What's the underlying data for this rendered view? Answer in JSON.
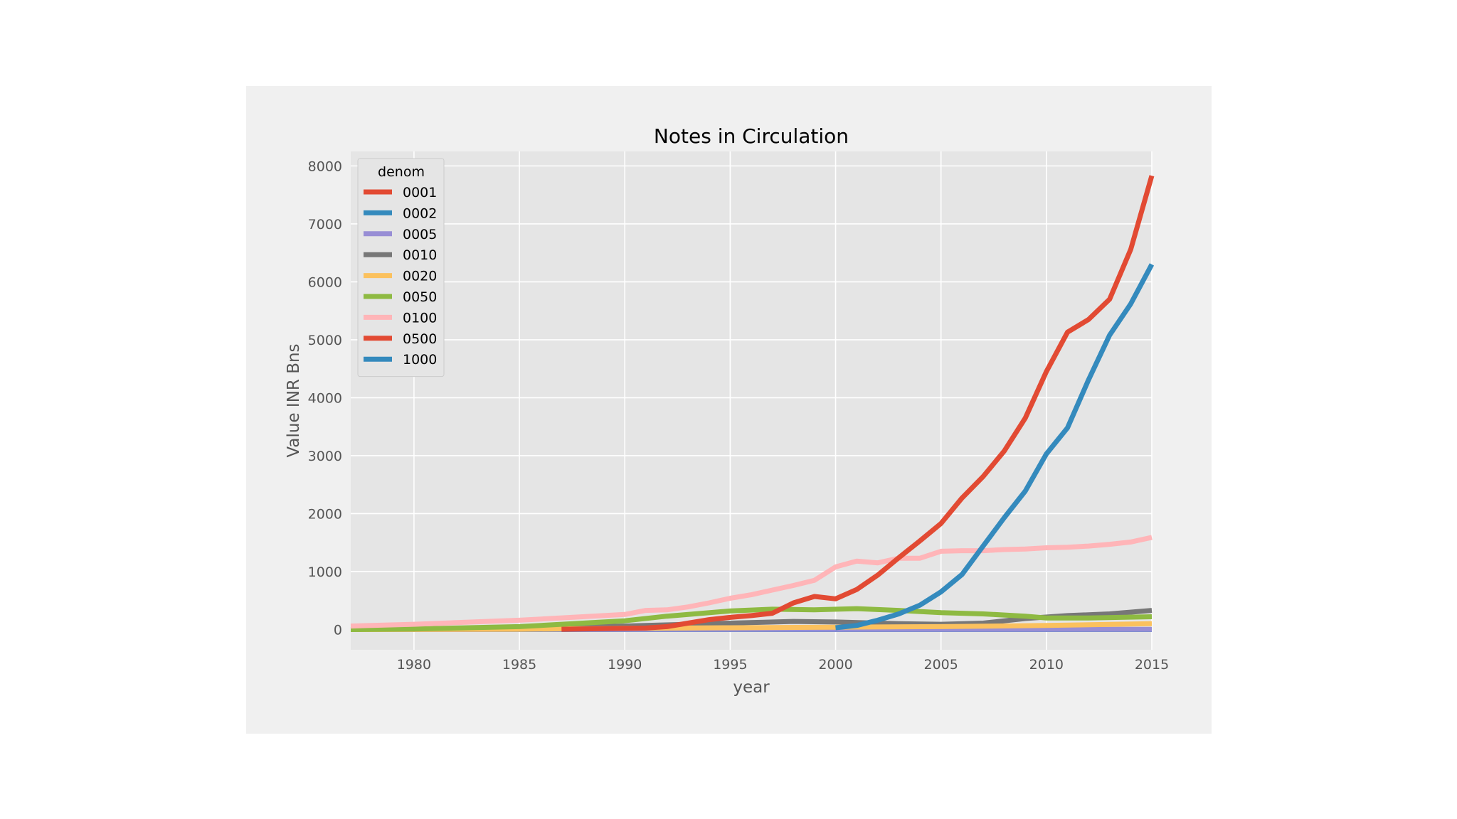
{
  "chart_data": {
    "type": "line",
    "title": "Notes in Circulation",
    "xlabel": "year",
    "ylabel": "Value INR Bns",
    "xlim": [
      1977,
      2015
    ],
    "ylim": [
      -350,
      8250
    ],
    "xticks": [
      1980,
      1985,
      1990,
      1995,
      2000,
      2005,
      2010,
      2015
    ],
    "yticks": [
      0,
      1000,
      2000,
      3000,
      4000,
      5000,
      6000,
      7000,
      8000
    ],
    "grid": true,
    "legend": {
      "title": "denom",
      "position": "top-left"
    },
    "series": [
      {
        "name": "0001",
        "color": "#E24A33",
        "x": [
          1977,
          2015
        ],
        "y": [
          0,
          0
        ]
      },
      {
        "name": "0002",
        "color": "#348ABD",
        "x": [
          1977,
          2015
        ],
        "y": [
          0,
          0
        ]
      },
      {
        "name": "0005",
        "color": "#988ED5",
        "x": [
          1977,
          1990,
          2000,
          2010,
          2015
        ],
        "y": [
          0,
          3,
          2,
          3,
          3
        ]
      },
      {
        "name": "0010",
        "color": "#777777",
        "x": [
          1977,
          1980,
          1985,
          1990,
          1993,
          1995,
          1998,
          2000,
          2003,
          2005,
          2007,
          2009,
          2011,
          2013,
          2015
        ],
        "y": [
          5,
          10,
          30,
          60,
          90,
          110,
          140,
          130,
          100,
          90,
          110,
          190,
          240,
          270,
          330
        ]
      },
      {
        "name": "0020",
        "color": "#FBC15E",
        "x": [
          1977,
          1985,
          1990,
          1995,
          2000,
          2005,
          2010,
          2015
        ],
        "y": [
          0,
          5,
          20,
          30,
          40,
          50,
          70,
          100
        ]
      },
      {
        "name": "0050",
        "color": "#8EBA42",
        "x": [
          1977,
          1980,
          1985,
          1990,
          1992,
          1995,
          1997,
          1999,
          2001,
          2003,
          2005,
          2007,
          2009,
          2010,
          2012,
          2015
        ],
        "y": [
          0,
          10,
          50,
          150,
          230,
          320,
          350,
          340,
          360,
          330,
          290,
          270,
          230,
          200,
          200,
          220
        ]
      },
      {
        "name": "0100",
        "color": "#FFB5B8",
        "x": [
          1977,
          1980,
          1985,
          1990,
          1991,
          1992,
          1993,
          1994,
          1995,
          1996,
          1997,
          1998,
          1999,
          2000,
          2001,
          2002,
          2003,
          2004,
          2005,
          2006,
          2007,
          2008,
          2009,
          2010,
          2011,
          2012,
          2013,
          2014,
          2015
        ],
        "y": [
          60,
          90,
          160,
          260,
          330,
          340,
          390,
          460,
          540,
          600,
          680,
          760,
          850,
          1080,
          1180,
          1150,
          1230,
          1230,
          1350,
          1360,
          1360,
          1380,
          1390,
          1410,
          1420,
          1440,
          1470,
          1510,
          1590
        ]
      },
      {
        "name": "0500",
        "color": "#E24A33",
        "x": [
          1987,
          1990,
          1991,
          1992,
          1993,
          1994,
          1995,
          1996,
          1997,
          1998,
          1999,
          2000,
          2001,
          2002,
          2003,
          2004,
          2005,
          2006,
          2007,
          2008,
          2009,
          2010,
          2011,
          2012,
          2013,
          2014,
          2015
        ],
        "y": [
          5,
          20,
          25,
          50,
          110,
          170,
          210,
          240,
          280,
          460,
          570,
          530,
          690,
          940,
          1240,
          1530,
          1830,
          2270,
          2640,
          3080,
          3650,
          4450,
          5130,
          5350,
          5700,
          6560,
          7830
        ]
      },
      {
        "name": "1000",
        "color": "#348ABD",
        "x": [
          2000,
          2001,
          2002,
          2003,
          2004,
          2005,
          2006,
          2007,
          2008,
          2009,
          2010,
          2011,
          2012,
          2013,
          2014,
          2015
        ],
        "y": [
          30,
          70,
          160,
          270,
          420,
          650,
          950,
          1440,
          1930,
          2390,
          3030,
          3480,
          4310,
          5080,
          5620,
          6300
        ]
      }
    ]
  }
}
